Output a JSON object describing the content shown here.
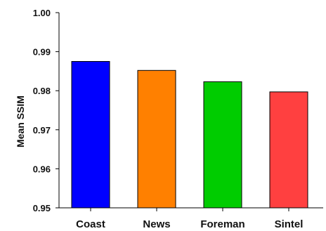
{
  "chart_data": {
    "type": "bar",
    "categories": [
      "Coast",
      "News",
      "Foreman",
      "Sintel"
    ],
    "values": [
      0.9875,
      0.9852,
      0.9823,
      0.9797
    ],
    "colors": [
      "#0000ff",
      "#ff8000",
      "#00cc00",
      "#ff4040"
    ],
    "ylabel": "Mean SSIM",
    "xlabel": "",
    "ylim": [
      0.95,
      1.0
    ],
    "yticks": [
      "0.95",
      "0.96",
      "0.97",
      "0.98",
      "0.99",
      "1.00"
    ],
    "grid": false,
    "legend": "none"
  }
}
